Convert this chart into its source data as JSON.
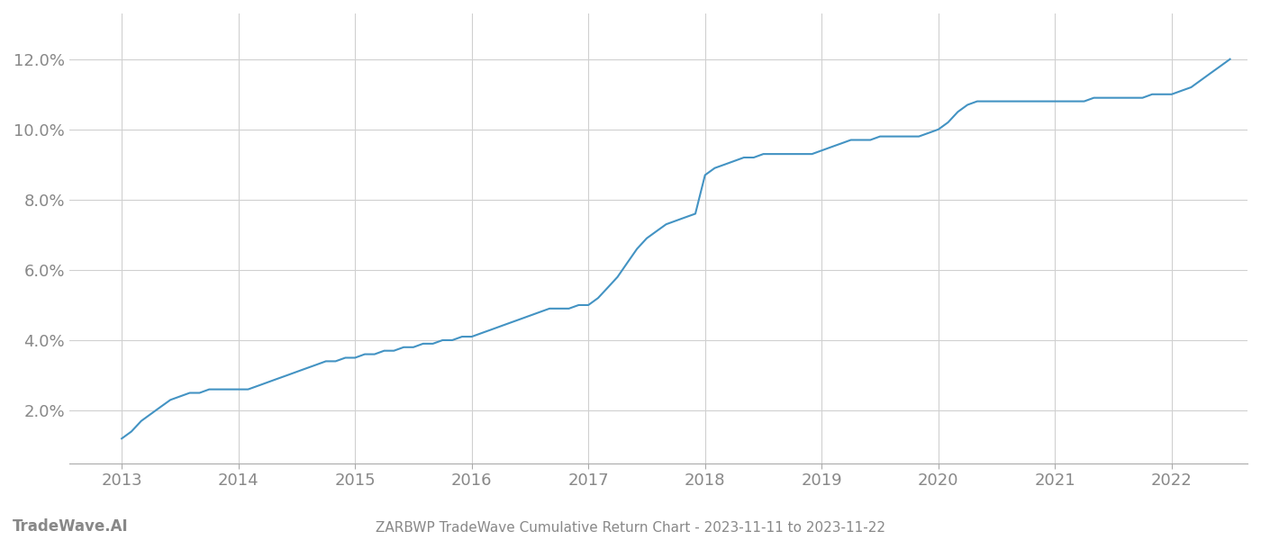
{
  "title": "ZARBWP TradeWave Cumulative Return Chart - 2023-11-11 to 2023-11-22",
  "watermark": "TradeWave.AI",
  "line_color": "#4393c3",
  "background_color": "#ffffff",
  "grid_color": "#d0d0d0",
  "x_years": [
    2013,
    2014,
    2015,
    2016,
    2017,
    2018,
    2019,
    2020,
    2021,
    2022
  ],
  "x_values": [
    2013.0,
    2013.083,
    2013.167,
    2013.25,
    2013.333,
    2013.417,
    2013.5,
    2013.583,
    2013.667,
    2013.75,
    2013.833,
    2013.917,
    2014.0,
    2014.083,
    2014.167,
    2014.25,
    2014.333,
    2014.417,
    2014.5,
    2014.583,
    2014.667,
    2014.75,
    2014.833,
    2014.917,
    2015.0,
    2015.083,
    2015.167,
    2015.25,
    2015.333,
    2015.417,
    2015.5,
    2015.583,
    2015.667,
    2015.75,
    2015.833,
    2015.917,
    2016.0,
    2016.083,
    2016.167,
    2016.25,
    2016.333,
    2016.417,
    2016.5,
    2016.583,
    2016.667,
    2016.75,
    2016.833,
    2016.917,
    2017.0,
    2017.083,
    2017.167,
    2017.25,
    2017.333,
    2017.417,
    2017.5,
    2017.583,
    2017.667,
    2017.75,
    2017.833,
    2017.917,
    2018.0,
    2018.083,
    2018.167,
    2018.25,
    2018.333,
    2018.417,
    2018.5,
    2018.583,
    2018.667,
    2018.75,
    2018.833,
    2018.917,
    2019.0,
    2019.083,
    2019.167,
    2019.25,
    2019.333,
    2019.417,
    2019.5,
    2019.583,
    2019.667,
    2019.75,
    2019.833,
    2019.917,
    2020.0,
    2020.083,
    2020.167,
    2020.25,
    2020.333,
    2020.417,
    2020.5,
    2020.583,
    2020.667,
    2020.75,
    2020.833,
    2020.917,
    2021.0,
    2021.083,
    2021.167,
    2021.25,
    2021.333,
    2021.417,
    2021.5,
    2021.583,
    2021.667,
    2021.75,
    2021.833,
    2021.917,
    2022.0,
    2022.083,
    2022.167,
    2022.25,
    2022.333,
    2022.417,
    2022.5
  ],
  "y_values": [
    0.012,
    0.014,
    0.017,
    0.019,
    0.021,
    0.023,
    0.024,
    0.025,
    0.025,
    0.026,
    0.026,
    0.026,
    0.026,
    0.026,
    0.027,
    0.028,
    0.029,
    0.03,
    0.031,
    0.032,
    0.033,
    0.034,
    0.034,
    0.035,
    0.035,
    0.036,
    0.036,
    0.037,
    0.037,
    0.038,
    0.038,
    0.039,
    0.039,
    0.04,
    0.04,
    0.041,
    0.041,
    0.042,
    0.043,
    0.044,
    0.045,
    0.046,
    0.047,
    0.048,
    0.049,
    0.049,
    0.049,
    0.05,
    0.05,
    0.052,
    0.055,
    0.058,
    0.062,
    0.066,
    0.069,
    0.071,
    0.073,
    0.074,
    0.075,
    0.076,
    0.087,
    0.089,
    0.09,
    0.091,
    0.092,
    0.092,
    0.093,
    0.093,
    0.093,
    0.093,
    0.093,
    0.093,
    0.094,
    0.095,
    0.096,
    0.097,
    0.097,
    0.097,
    0.098,
    0.098,
    0.098,
    0.098,
    0.098,
    0.099,
    0.1,
    0.102,
    0.105,
    0.107,
    0.108,
    0.108,
    0.108,
    0.108,
    0.108,
    0.108,
    0.108,
    0.108,
    0.108,
    0.108,
    0.108,
    0.108,
    0.109,
    0.109,
    0.109,
    0.109,
    0.109,
    0.109,
    0.11,
    0.11,
    0.11,
    0.111,
    0.112,
    0.114,
    0.116,
    0.118,
    0.12
  ],
  "ylim": [
    0.005,
    0.133
  ],
  "xlim": [
    2012.55,
    2022.65
  ],
  "yticks": [
    0.02,
    0.04,
    0.06,
    0.08,
    0.1,
    0.12
  ],
  "ytick_labels": [
    "2.0%",
    "4.0%",
    "6.0%",
    "8.0%",
    "10.0%",
    "12.0%"
  ],
  "line_width": 1.5,
  "axis_color": "#aaaaaa",
  "tick_color": "#888888",
  "title_fontsize": 11,
  "watermark_fontsize": 12,
  "tick_fontsize": 13
}
